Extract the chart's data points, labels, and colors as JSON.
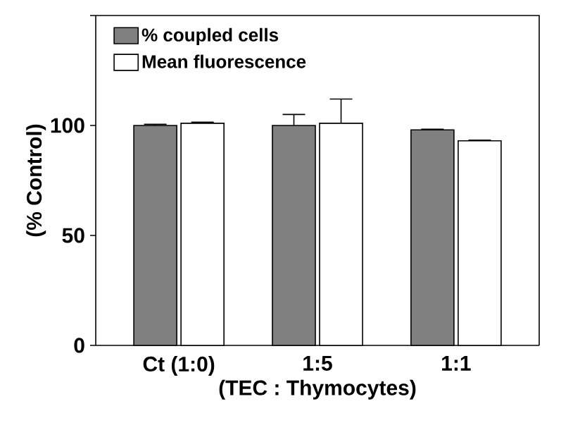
{
  "chart_data": {
    "type": "bar",
    "xlabel": "(TEC : Thymocytes)",
    "ylabel": "(% Control)",
    "categories": [
      "Ct (1:0)",
      "1:5",
      "1:1"
    ],
    "series": [
      {
        "name": "% coupled cells",
        "color": "#808080",
        "values": [
          100,
          100,
          98
        ],
        "errors": [
          0.5,
          5,
          0.3
        ]
      },
      {
        "name": "Mean fluorescence",
        "color": "#ffffff",
        "values": [
          101,
          101,
          93
        ],
        "errors": [
          0.5,
          11,
          0.3
        ]
      }
    ],
    "ylim": [
      0,
      150
    ],
    "yticks": [
      0,
      50,
      100,
      {
        "value": 150,
        "label": null
      }
    ],
    "legend": "top left",
    "grid": false
  }
}
